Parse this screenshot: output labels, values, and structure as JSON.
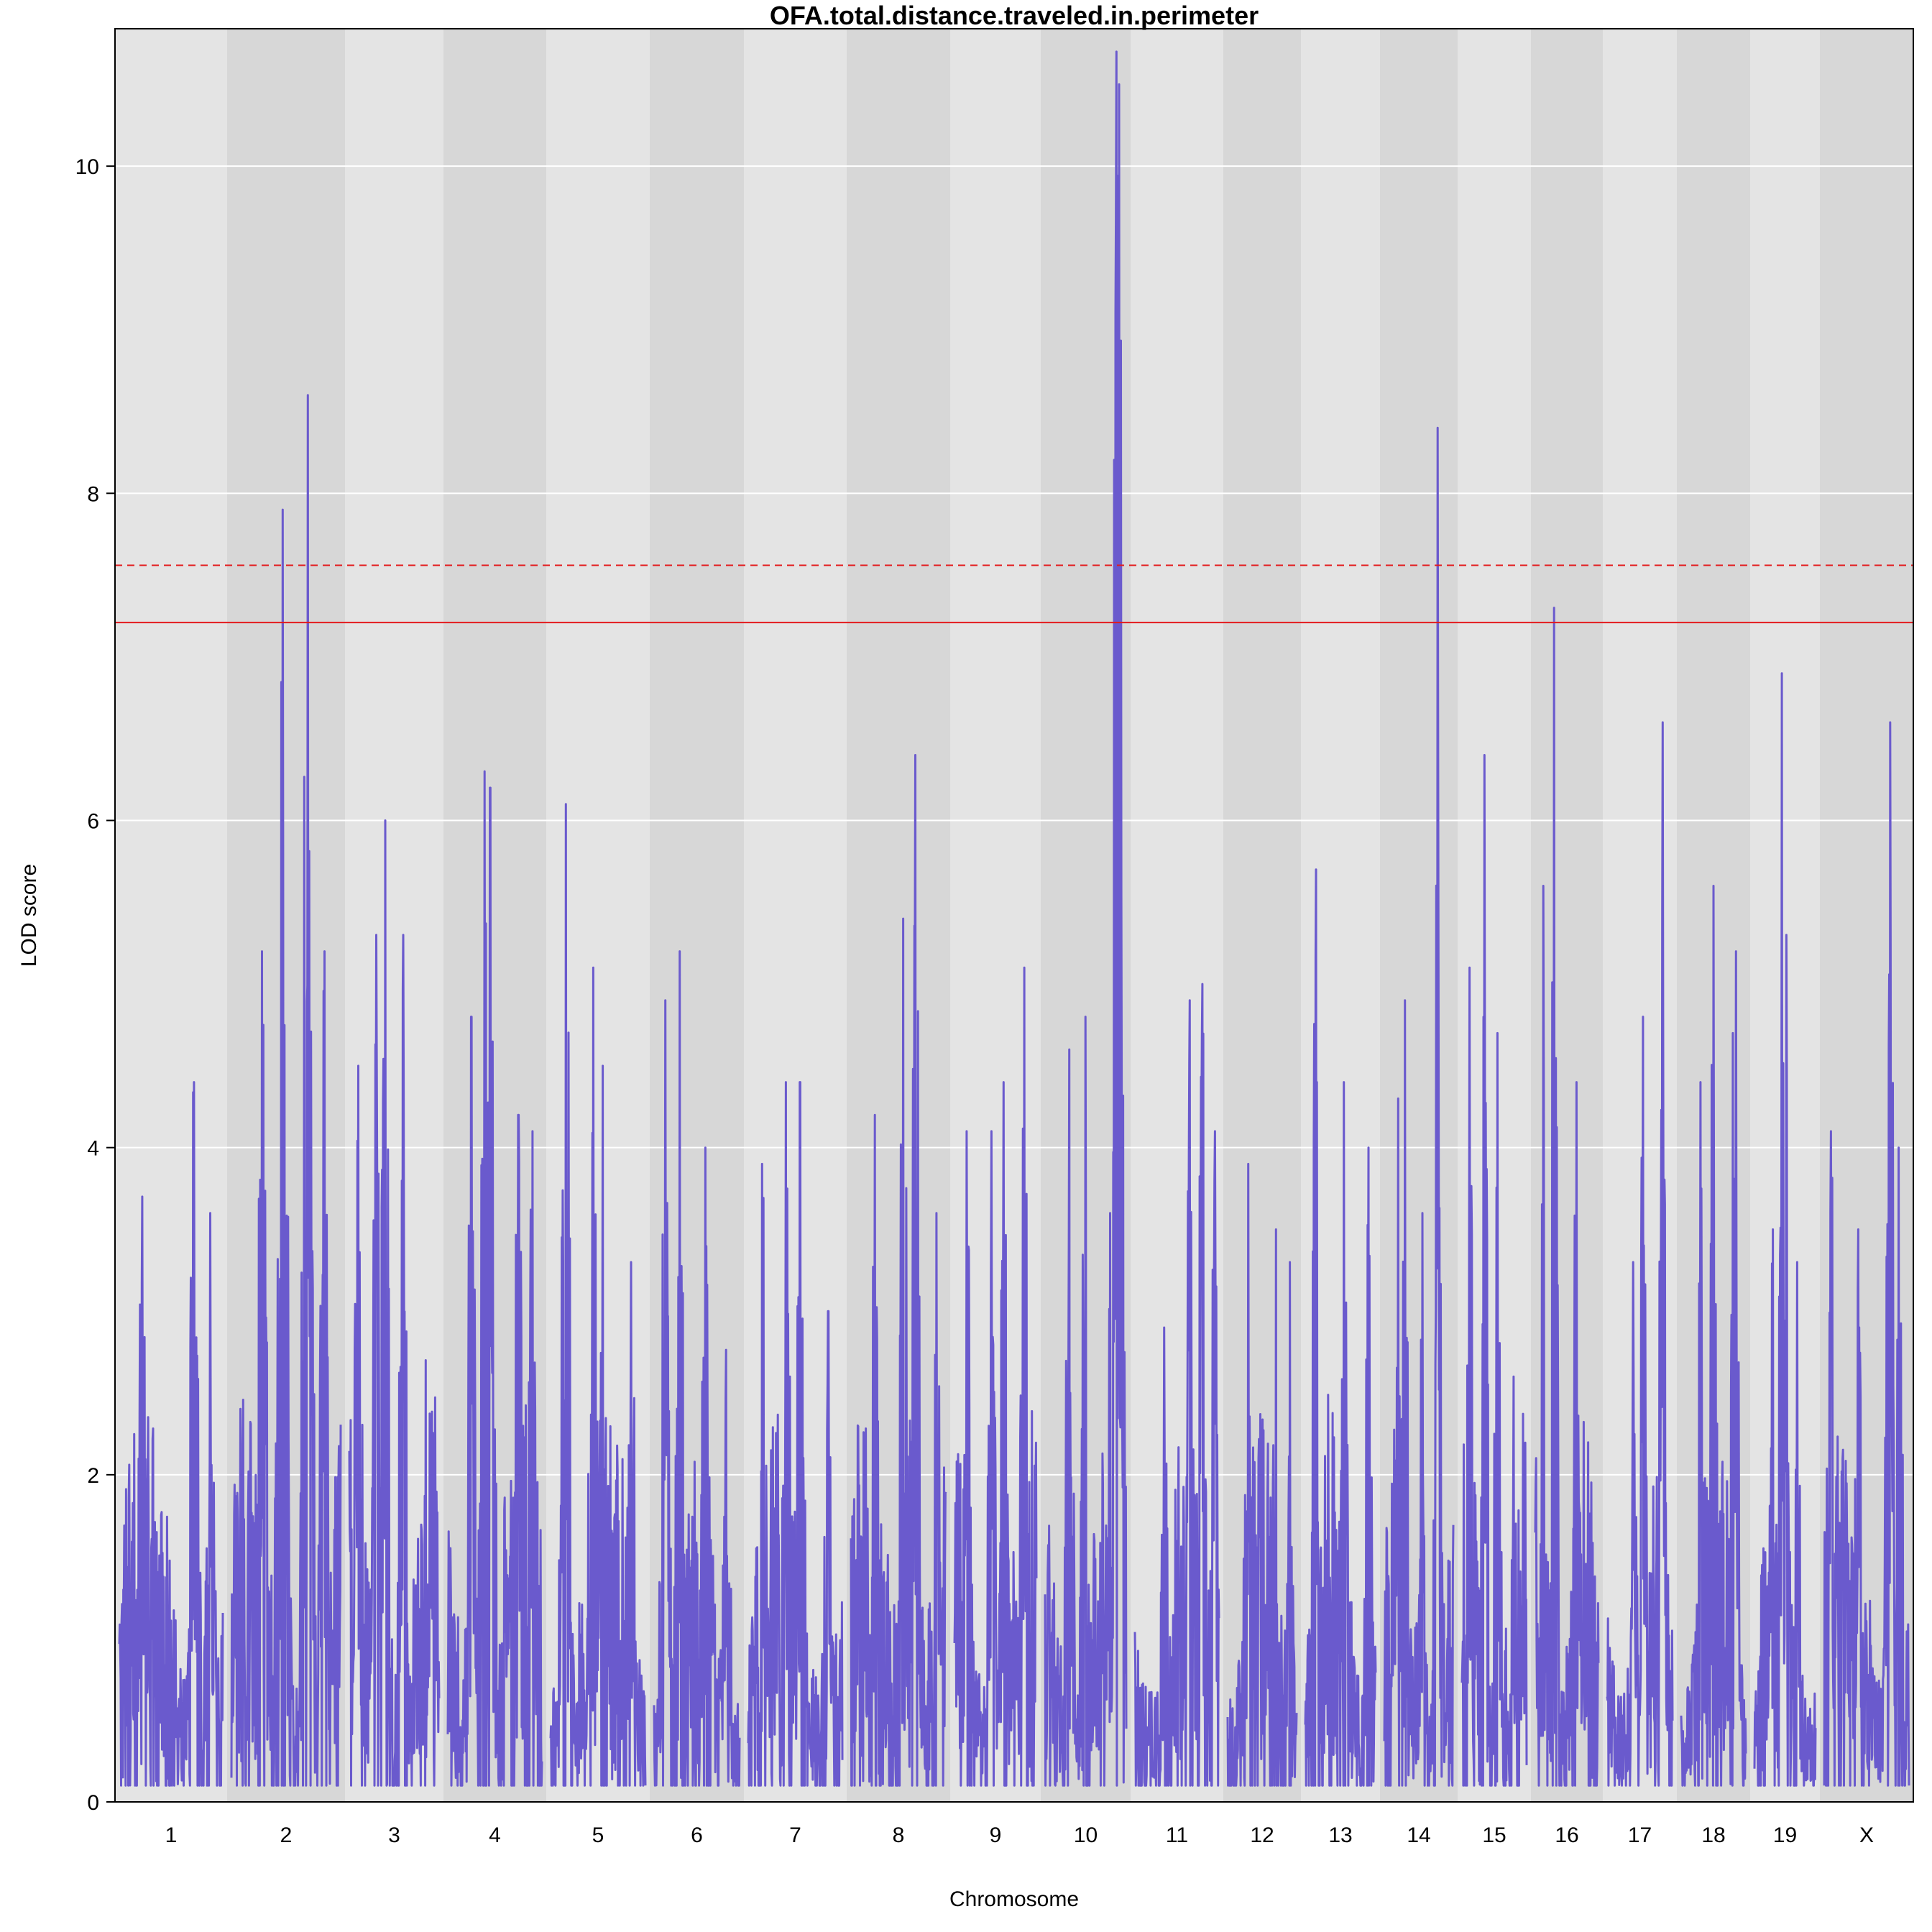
{
  "chart_data": {
    "type": "line",
    "title": "OFA.total.distance.traveled.in.perimeter",
    "xlabel": "Chromosome",
    "ylabel": "LOD score",
    "ylim": [
      0,
      10.84
    ],
    "yticks": [
      0,
      2,
      4,
      6,
      8,
      10
    ],
    "grid": true,
    "colors": {
      "line": "#6a5acd",
      "band_light": "#e4e4e4",
      "band_dark": "#d7d7d7",
      "gridline": "#ffffff",
      "threshold": "#e31a1c",
      "axis": "#000000"
    },
    "chromosomes": [
      {
        "label": "1",
        "peaks": [
          {
            "at": 0.22,
            "lod": 3.7
          },
          {
            "at": 0.72,
            "lod": 4.4
          },
          {
            "at": 0.88,
            "lod": 3.6
          }
        ]
      },
      {
        "label": "2",
        "peaks": [
          {
            "at": 0.28,
            "lod": 5.2
          },
          {
            "at": 0.47,
            "lod": 7.9
          },
          {
            "at": 0.7,
            "lod": 8.6
          },
          {
            "at": 0.85,
            "lod": 5.2
          }
        ]
      },
      {
        "label": "3",
        "peaks": [
          {
            "at": 0.1,
            "lod": 4.5
          },
          {
            "at": 0.3,
            "lod": 5.3
          },
          {
            "at": 0.4,
            "lod": 6.0
          },
          {
            "at": 0.6,
            "lod": 5.3
          },
          {
            "at": 0.85,
            "lod": 2.7
          }
        ]
      },
      {
        "label": "4",
        "peaks": [
          {
            "at": 0.25,
            "lod": 4.8
          },
          {
            "at": 0.39,
            "lod": 6.3
          },
          {
            "at": 0.45,
            "lod": 6.2
          },
          {
            "at": 0.75,
            "lod": 4.2
          },
          {
            "at": 0.9,
            "lod": 4.1
          }
        ]
      },
      {
        "label": "5",
        "peaks": [
          {
            "at": 0.16,
            "lod": 6.1
          },
          {
            "at": 0.45,
            "lod": 5.1
          },
          {
            "at": 0.55,
            "lod": 4.5
          },
          {
            "at": 0.85,
            "lod": 3.3
          }
        ]
      },
      {
        "label": "6",
        "peaks": [
          {
            "at": 0.13,
            "lod": 4.9
          },
          {
            "at": 0.3,
            "lod": 5.2
          },
          {
            "at": 0.6,
            "lod": 4.0
          },
          {
            "at": 0.85,
            "lod": 2.9
          }
        ]
      },
      {
        "label": "7",
        "peaks": [
          {
            "at": 0.15,
            "lod": 3.9
          },
          {
            "at": 0.4,
            "lod": 4.4
          },
          {
            "at": 0.55,
            "lod": 4.4
          },
          {
            "at": 0.85,
            "lod": 3.0
          }
        ]
      },
      {
        "label": "8",
        "peaks": [
          {
            "at": 0.25,
            "lod": 4.2
          },
          {
            "at": 0.55,
            "lod": 5.4
          },
          {
            "at": 0.68,
            "lod": 6.4
          },
          {
            "at": 0.9,
            "lod": 3.6
          }
        ]
      },
      {
        "label": "9",
        "peaks": [
          {
            "at": 0.15,
            "lod": 4.1
          },
          {
            "at": 0.45,
            "lod": 4.1
          },
          {
            "at": 0.6,
            "lod": 4.4
          },
          {
            "at": 0.85,
            "lod": 5.1
          }
        ]
      },
      {
        "label": "10",
        "peaks": [
          {
            "at": 0.3,
            "lod": 4.6
          },
          {
            "at": 0.5,
            "lod": 4.8
          },
          {
            "at": 0.8,
            "lod": 3.6
          },
          {
            "at": 0.88,
            "lod": 10.7
          },
          {
            "at": 0.91,
            "lod": 10.5
          }
        ]
      },
      {
        "label": "11",
        "peaks": [
          {
            "at": 0.35,
            "lod": 2.9
          },
          {
            "at": 0.65,
            "lod": 4.9
          },
          {
            "at": 0.8,
            "lod": 5.0
          },
          {
            "at": 0.95,
            "lod": 4.1
          }
        ]
      },
      {
        "label": "12",
        "peaks": [
          {
            "at": 0.3,
            "lod": 3.9
          },
          {
            "at": 0.7,
            "lod": 3.5
          },
          {
            "at": 0.9,
            "lod": 3.3
          }
        ]
      },
      {
        "label": "13",
        "peaks": [
          {
            "at": 0.15,
            "lod": 5.7
          },
          {
            "at": 0.55,
            "lod": 4.4
          },
          {
            "at": 0.9,
            "lod": 4.0
          }
        ]
      },
      {
        "label": "14",
        "peaks": [
          {
            "at": 0.2,
            "lod": 4.3
          },
          {
            "at": 0.3,
            "lod": 4.9
          },
          {
            "at": 0.77,
            "lod": 8.4
          },
          {
            "at": 0.55,
            "lod": 3.6
          }
        ]
      },
      {
        "label": "15",
        "peaks": [
          {
            "at": 0.12,
            "lod": 5.1
          },
          {
            "at": 0.35,
            "lod": 6.4
          },
          {
            "at": 0.55,
            "lod": 4.7
          },
          {
            "at": 0.8,
            "lod": 2.6
          }
        ]
      },
      {
        "label": "16",
        "peaks": [
          {
            "at": 0.13,
            "lod": 5.6
          },
          {
            "at": 0.3,
            "lod": 7.3
          },
          {
            "at": 0.65,
            "lod": 4.4
          }
        ]
      },
      {
        "label": "17",
        "peaks": [
          {
            "at": 0.4,
            "lod": 3.3
          },
          {
            "at": 0.55,
            "lod": 4.8
          },
          {
            "at": 0.85,
            "lod": 6.6
          }
        ]
      },
      {
        "label": "18",
        "peaks": [
          {
            "at": 0.3,
            "lod": 4.4
          },
          {
            "at": 0.5,
            "lod": 5.6
          },
          {
            "at": 0.8,
            "lod": 4.7
          },
          {
            "at": 0.85,
            "lod": 5.2
          }
        ]
      },
      {
        "label": "19",
        "peaks": [
          {
            "at": 0.3,
            "lod": 3.5
          },
          {
            "at": 0.45,
            "lod": 6.9
          },
          {
            "at": 0.52,
            "lod": 5.3
          },
          {
            "at": 0.7,
            "lod": 3.3
          }
        ]
      },
      {
        "label": "X",
        "peaks": [
          {
            "at": 0.08,
            "lod": 4.1
          },
          {
            "at": 0.4,
            "lod": 3.5
          },
          {
            "at": 0.78,
            "lod": 6.6
          },
          {
            "at": 0.88,
            "lod": 4.0
          }
        ]
      }
    ],
    "thresholds": [
      {
        "lod": 7.56,
        "style": "dashed"
      },
      {
        "lod": 7.21,
        "style": "solid"
      }
    ]
  }
}
